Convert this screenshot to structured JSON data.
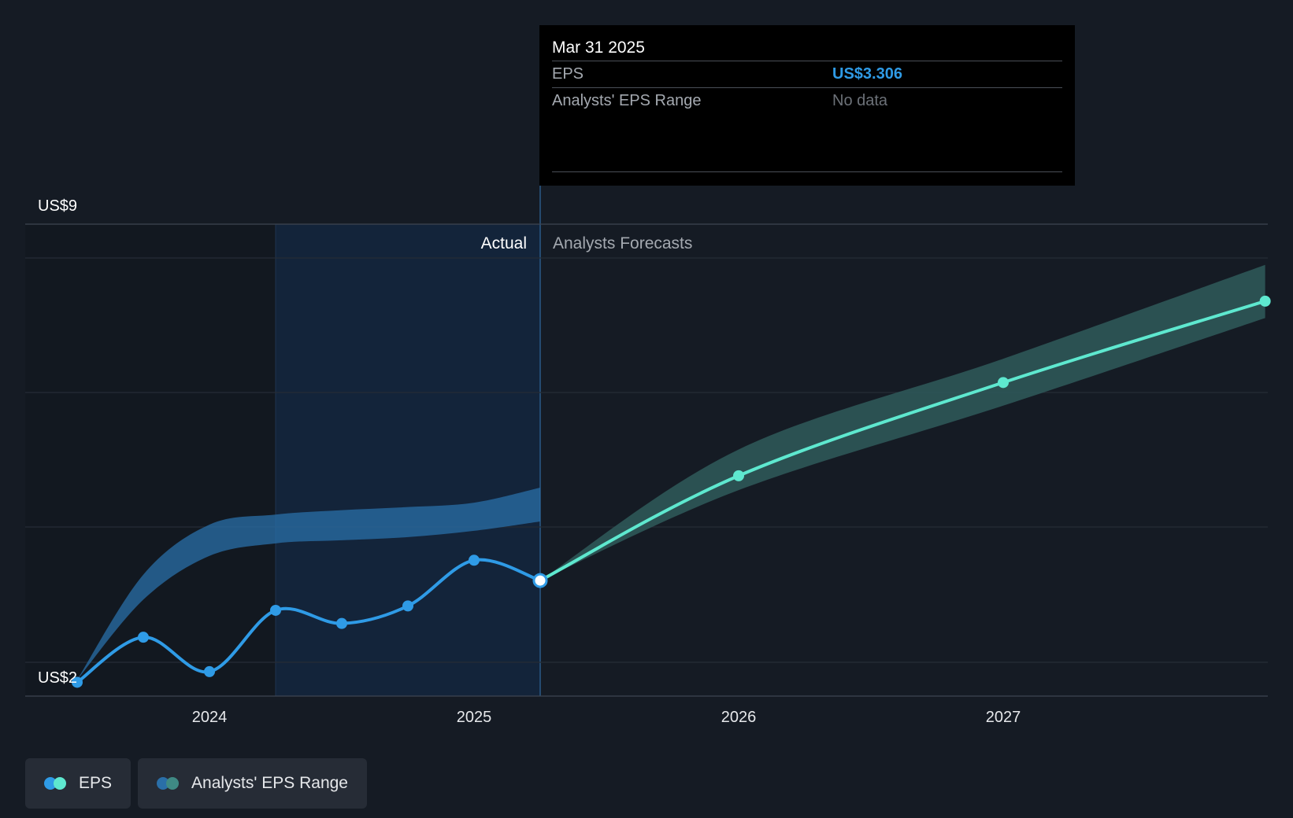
{
  "chart_data": {
    "type": "line",
    "y_top_label": "US$9",
    "y_bottom_label": "US$2",
    "ylim": [
      1.5,
      9
    ],
    "xlim": [
      2023.55,
      2027.99
    ],
    "x_ticks": [
      2024,
      2025,
      2026,
      2027
    ],
    "x_tick_labels": [
      "2024",
      "2025",
      "2026",
      "2027"
    ],
    "section_labels": {
      "actual": "Actual",
      "forecast": "Analysts Forecasts"
    },
    "actual_start": 2024.25,
    "divider": 2025.25,
    "series": [
      {
        "name": "EPS",
        "kind": "actual",
        "x": [
          2023.5,
          2023.75,
          2024.0,
          2024.25,
          2024.5,
          2024.75,
          2025.0,
          2025.25
        ],
        "y": [
          1.68,
          2.4,
          1.85,
          2.83,
          2.62,
          2.9,
          3.63,
          3.306
        ]
      },
      {
        "name": "EPS",
        "kind": "forecast",
        "x": [
          2025.25,
          2026.0,
          2027.0,
          2027.99
        ],
        "y": [
          3.306,
          4.98,
          6.47,
          7.77
        ]
      }
    ],
    "range_bands": [
      {
        "x": [
          2023.5,
          2023.75,
          2024.0,
          2024.25,
          2024.5,
          2024.75,
          2025.0,
          2025.25
        ],
        "upper": [
          1.72,
          3.4,
          4.2,
          4.36,
          4.43,
          4.48,
          4.55,
          4.79
        ],
        "lower": [
          1.72,
          3.0,
          3.7,
          3.9,
          3.95,
          4.0,
          4.1,
          4.25
        ]
      },
      {
        "x": [
          2025.25,
          2026.0,
          2027.0,
          2027.99
        ],
        "upper": [
          3.306,
          5.4,
          6.85,
          8.35
        ],
        "lower": [
          3.306,
          4.75,
          6.1,
          7.5
        ]
      }
    ],
    "highlight": {
      "x": 2025.25,
      "y": 3.306
    },
    "colors": {
      "actual_line": "#2f9be6",
      "forecast_line": "#5ee8cf",
      "actual_band": "#2a6fa8",
      "forecast_band": "#2f5a5a"
    }
  },
  "tooltip": {
    "date": "Mar 31 2025",
    "rows": [
      {
        "label": "EPS",
        "value": "US$3.306"
      },
      {
        "label": "Analysts' EPS Range",
        "value": "No data"
      }
    ]
  },
  "legend": [
    {
      "label": "EPS",
      "icon": "eps-dots-icon"
    },
    {
      "label": "Analysts' EPS Range",
      "icon": "range-dots-icon"
    }
  ]
}
